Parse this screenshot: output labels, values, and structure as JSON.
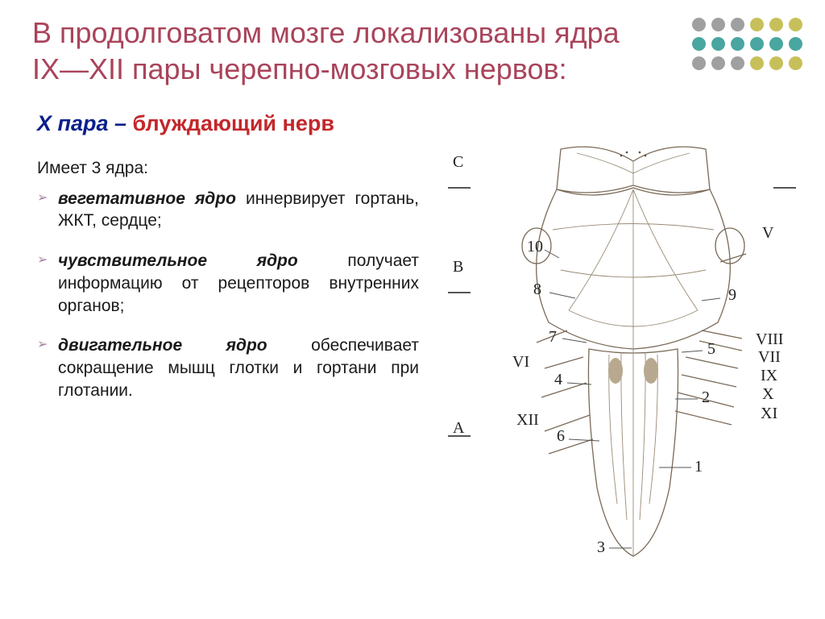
{
  "colors": {
    "title": "#a9445b",
    "subtitle_x": "#0a1f8a",
    "subtitle_rest": "#c3272b",
    "body_text": "#1a1a1a",
    "bullet_marker": "#a97ea3",
    "dots_row1": [
      "#a0a0a0",
      "#a0a0a0",
      "#a0a0a0",
      "#c7c05a",
      "#c7c05a",
      "#c7c05a"
    ],
    "dots_row2": [
      "#4aa6a0",
      "#4aa6a0",
      "#4aa6a0",
      "#4aa6a0",
      "#4aa6a0",
      "#4aa6a0"
    ],
    "dots_row3": [
      "#a0a0a0",
      "#a0a0a0",
      "#a0a0a0",
      "#c7c05a",
      "#c7c05a",
      "#c7c05a"
    ]
  },
  "title": "В продолговатом мозге локализованы ядра IX—XII пары черепно-мозговых нервов:",
  "subtitle_x": "X пара –",
  "subtitle_rest": " блуждающий нерв",
  "intro": "Имеет 3 ядра:",
  "bullets": [
    {
      "bold_italic": "вегетативное ядро",
      "rest": " иннервирует гортань, ЖКТ, сердце;"
    },
    {
      "bold_italic": "чувствительное ядро",
      "rest": " получает информацию от рецепторов внутренних органов;"
    },
    {
      "bold_italic": "двигательное ядро",
      "rest": " обеспечивает сокращение мышц глотки и гортани при глотании."
    }
  ],
  "figure": {
    "left_section_labels": [
      "C",
      "B",
      "A"
    ],
    "right_roman": [
      "V",
      "VIII",
      "VII",
      "IX",
      "X",
      "XI"
    ],
    "left_roman": [
      "VI",
      "XII"
    ],
    "numbers": [
      "10",
      "8",
      "7",
      "4",
      "6",
      "3",
      "9",
      "5",
      "2",
      "1"
    ]
  }
}
